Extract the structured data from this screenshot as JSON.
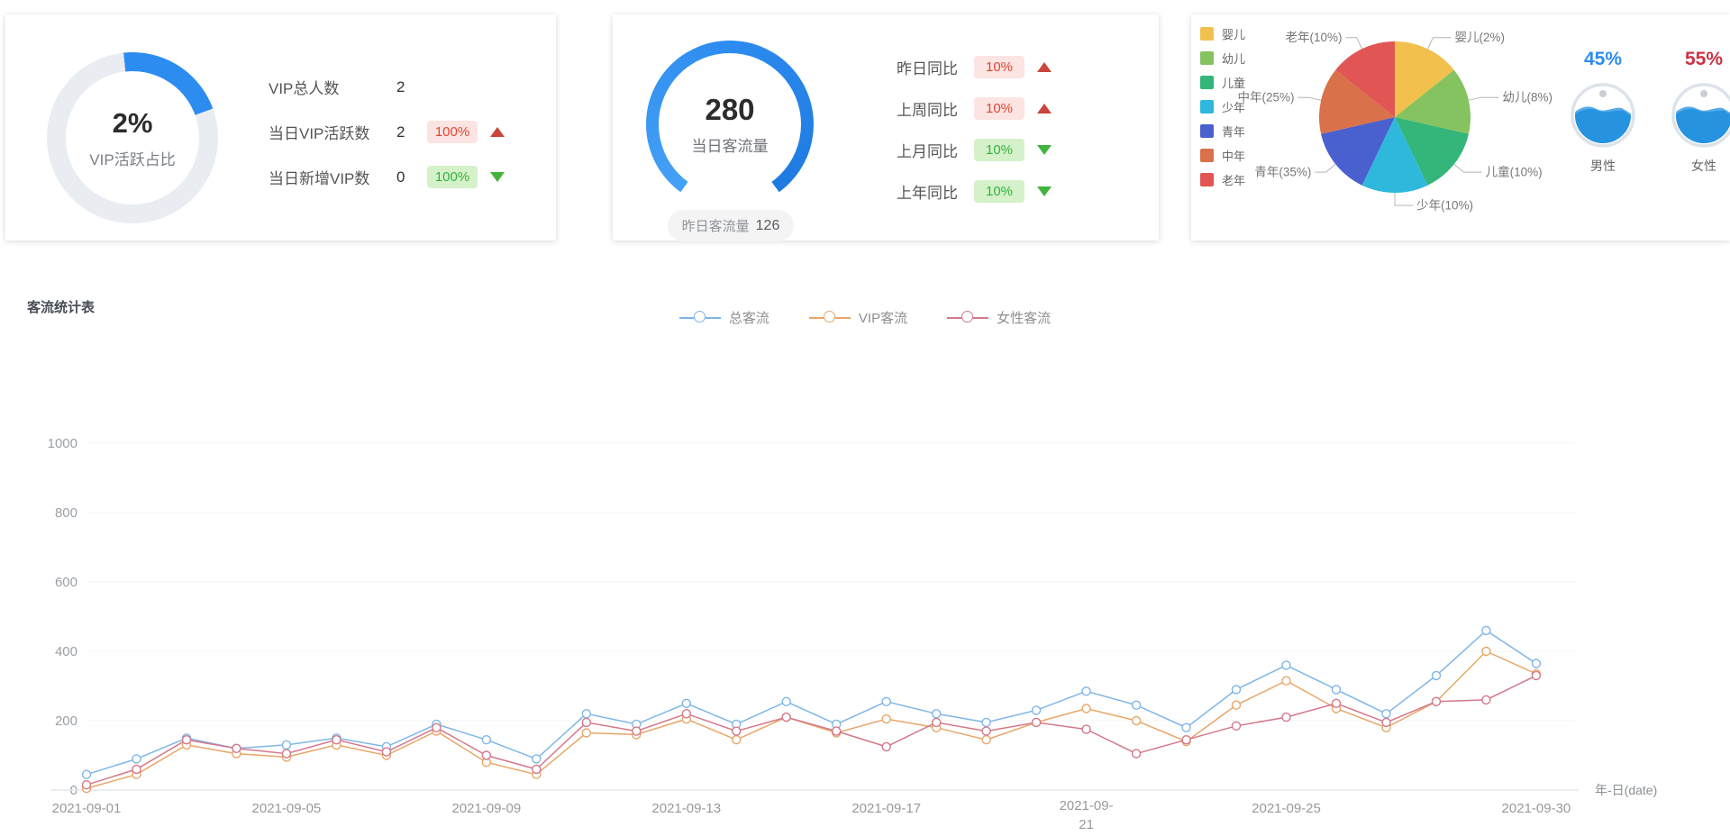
{
  "colors": {
    "accent_blue": "#2d8cf0",
    "badge_red_bg": "#fbe4e1",
    "badge_red_text": "#df4537",
    "badge_green_bg": "#d5f1ca",
    "badge_green_text": "#35b13c",
    "arrow_up": "#ca453c",
    "arrow_down": "#42b33c",
    "male_percent_color": "#2d8cf0",
    "female_percent_color": "#cc3344",
    "liquid_fill": "#2693e0"
  },
  "cards": {
    "vip": {
      "percent": "2%",
      "donut_label": "VIP活跃占比",
      "rows": [
        {
          "label": "VIP总人数",
          "value": "2",
          "badge": "",
          "badge_style": "",
          "trend": ""
        },
        {
          "label": "当日VIP活跃数",
          "value": "2",
          "badge": "100%",
          "badge_style": "red",
          "trend": "up"
        },
        {
          "label": "当日新增VIP数",
          "value": "0",
          "badge": "100%",
          "badge_style": "green",
          "trend": "down"
        }
      ]
    },
    "traffic": {
      "value": "280",
      "label": "当日客流量",
      "pill_label": "昨日客流量",
      "pill_value": "126",
      "rows": [
        {
          "label": "昨日同比",
          "badge": "10%",
          "badge_style": "red",
          "trend": "up"
        },
        {
          "label": "上周同比",
          "badge": "10%",
          "badge_style": "red",
          "trend": "up"
        },
        {
          "label": "上月同比",
          "badge": "10%",
          "badge_style": "green",
          "trend": "down"
        },
        {
          "label": "上年同比",
          "badge": "10%",
          "badge_style": "green",
          "trend": "down"
        }
      ]
    },
    "demographics": {
      "gender": [
        {
          "percent": "45%",
          "label": "男性"
        },
        {
          "percent": "55%",
          "label": "女性"
        }
      ]
    }
  },
  "flow": {
    "title": "客流统计表",
    "axis_name": "年-日(date)"
  },
  "chart_data": [
    {
      "type": "pie",
      "categories": [
        "婴儿",
        "幼儿",
        "儿童",
        "少年",
        "青年",
        "中年",
        "老年"
      ],
      "values": [
        2,
        8,
        10,
        10,
        35,
        25,
        10
      ],
      "labels": [
        "婴儿(2%)",
        "幼儿(8%)",
        "儿童(10%)",
        "少年(10%)",
        "青年(35%)",
        "中年(25%)",
        "老年(10%)"
      ],
      "colors": [
        "#f2c04d",
        "#85c360",
        "#34b579",
        "#2db8dc",
        "#4a60cf",
        "#d9714a",
        "#e25555"
      ],
      "legend_position": "left",
      "note": "slices rendered with equal angles in source chart despite labeled percentages"
    },
    {
      "type": "line",
      "x": [
        "2021-09-01",
        "2021-09-02",
        "2021-09-03",
        "2021-09-04",
        "2021-09-05",
        "2021-09-06",
        "2021-09-07",
        "2021-09-08",
        "2021-09-09",
        "2021-09-10",
        "2021-09-11",
        "2021-09-12",
        "2021-09-13",
        "2021-09-14",
        "2021-09-15",
        "2021-09-16",
        "2021-09-17",
        "2021-09-18",
        "2021-09-19",
        "2021-09-20",
        "2021-09-21",
        "2021-09-22",
        "2021-09-23",
        "2021-09-24",
        "2021-09-25",
        "2021-09-26",
        "2021-09-27",
        "2021-09-28",
        "2021-09-29",
        "2021-09-30"
      ],
      "shown_x_ticks": [
        "2021-09-01",
        "2021-09-05",
        "2021-09-09",
        "2021-09-13",
        "2021-09-17",
        "2021-09-21",
        "2021-09-25",
        "2021-09-30"
      ],
      "x_axis_name": "年-日(date)",
      "ylim": [
        0,
        1000
      ],
      "yticks": [
        0,
        200,
        400,
        600,
        800,
        1000
      ],
      "grid": false,
      "legend_position": "top-center",
      "series": [
        {
          "name": "总客流",
          "color": "#7eb6e8",
          "values": [
            45,
            90,
            150,
            120,
            130,
            150,
            125,
            190,
            145,
            90,
            220,
            190,
            250,
            190,
            255,
            190,
            255,
            220,
            195,
            230,
            285,
            245,
            180,
            290,
            360,
            290,
            220,
            330,
            460,
            365
          ]
        },
        {
          "name": "VIP客流",
          "color": "#e8a668",
          "values": [
            5,
            45,
            130,
            105,
            95,
            130,
            100,
            170,
            80,
            45,
            165,
            160,
            205,
            145,
            210,
            165,
            205,
            180,
            145,
            195,
            235,
            200,
            140,
            245,
            315,
            235,
            180,
            255,
            400,
            335
          ]
        },
        {
          "name": "女性客流",
          "color": "#d4788a",
          "values": [
            15,
            60,
            145,
            120,
            105,
            145,
            110,
            180,
            100,
            60,
            195,
            170,
            220,
            170,
            210,
            170,
            125,
            195,
            170,
            195,
            175,
            105,
            145,
            185,
            210,
            250,
            195,
            255,
            260,
            330
          ]
        }
      ]
    }
  ]
}
